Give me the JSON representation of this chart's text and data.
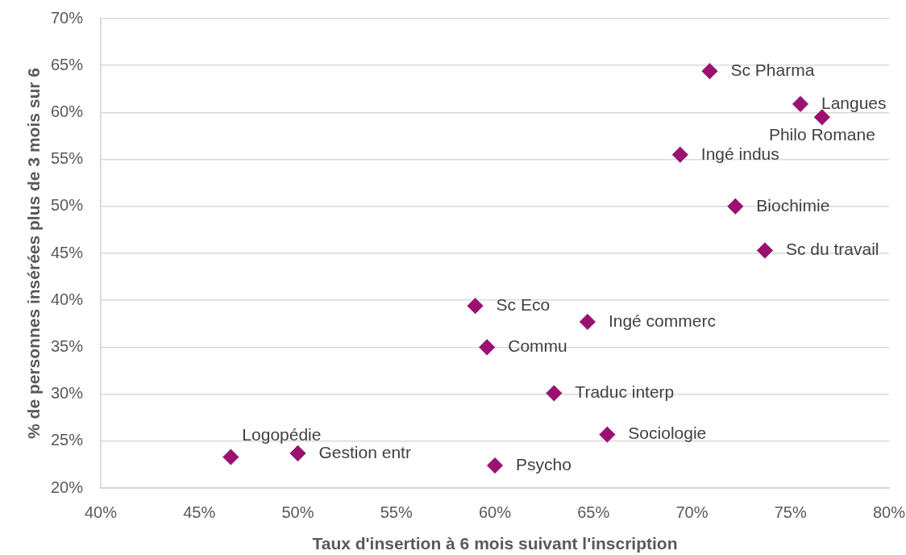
{
  "chart_data": {
    "type": "scatter",
    "xlabel": "Taux d'insertion à 6 mois suivant l'inscription",
    "ylabel": "% de personnes insérées plus de 3 mois sur 6",
    "x": [
      70.9,
      75.5,
      76.6,
      69.4,
      72.2,
      73.7,
      59.0,
      64.7,
      59.6,
      63.0,
      65.7,
      60.0,
      46.6,
      50.0
    ],
    "values": [
      64.4,
      60.9,
      59.5,
      55.5,
      50.0,
      45.3,
      39.4,
      37.7,
      35.0,
      30.1,
      25.7,
      22.4,
      23.3,
      23.7
    ],
    "color": "#9b116f",
    "marker": "diamond",
    "xlim": [
      40,
      80
    ],
    "xticks": [
      {
        "value": 40,
        "label": "40%"
      },
      {
        "value": 45,
        "label": "45%"
      },
      {
        "value": 50,
        "label": "50%"
      },
      {
        "value": 55,
        "label": "55%"
      },
      {
        "value": 60,
        "label": "60%"
      },
      {
        "value": 65,
        "label": "65%"
      },
      {
        "value": 70,
        "label": "70%"
      },
      {
        "value": 75,
        "label": "75%"
      },
      {
        "value": 80,
        "label": "80%"
      }
    ],
    "ylim": [
      20,
      70
    ],
    "yticks": [
      {
        "value": 20,
        "label": "20%"
      },
      {
        "value": 25,
        "label": "25%"
      },
      {
        "value": 30,
        "label": "30%"
      },
      {
        "value": 35,
        "label": "35%"
      },
      {
        "value": 40,
        "label": "40%"
      },
      {
        "value": 45,
        "label": "45%"
      },
      {
        "value": 50,
        "label": "50%"
      },
      {
        "value": 55,
        "label": "55%"
      },
      {
        "value": 60,
        "label": "60%"
      },
      {
        "value": 65,
        "label": "65%"
      },
      {
        "value": 70,
        "label": "70%"
      }
    ],
    "grid": "y",
    "annotations": [
      {
        "text": "Sc Pharma",
        "x": 70.9,
        "y": 64.4
      },
      {
        "text": "Langues",
        "x": 75.5,
        "y": 60.9
      },
      {
        "text": "Philo Romane",
        "x": 76.6,
        "y": 59.5
      },
      {
        "text": "Ingé indus",
        "x": 69.4,
        "y": 55.5
      },
      {
        "text": "Biochimie",
        "x": 72.2,
        "y": 50.0
      },
      {
        "text": "Sc du travail",
        "x": 73.7,
        "y": 45.3
      },
      {
        "text": "Sc Eco",
        "x": 59.0,
        "y": 39.4
      },
      {
        "text": "Ingé commerc",
        "x": 64.7,
        "y": 37.7
      },
      {
        "text": "Commu",
        "x": 59.6,
        "y": 35.0
      },
      {
        "text": "Traduc interp",
        "x": 63.0,
        "y": 30.1
      },
      {
        "text": "Sociologie",
        "x": 65.7,
        "y": 25.7
      },
      {
        "text": "Psycho",
        "x": 60.0,
        "y": 22.4
      },
      {
        "text": "Logopédie",
        "x": 46.6,
        "y": 23.3
      },
      {
        "text": "Gestion entr",
        "x": 50.0,
        "y": 23.7
      }
    ]
  }
}
